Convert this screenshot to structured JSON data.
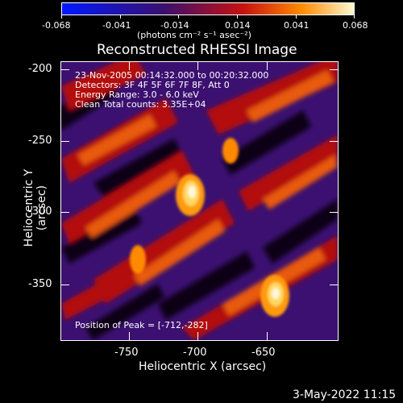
{
  "colorbar": {
    "tick_labels": [
      "-0.068",
      "-0.041",
      "-0.014",
      "0.014",
      "0.041",
      "0.068"
    ],
    "unit_label": "(photons cm⁻² s⁻¹ asec⁻²)",
    "colors": [
      "#0018ff",
      "#3a0f6e",
      "#c81010",
      "#ff8a00",
      "#fff8d0"
    ]
  },
  "title": "Reconstructed RHESSI Image",
  "annotations": {
    "time_range": "23-Nov-2005 00:14:32.000 to 00:20:32.000",
    "detectors": "Detectors: 3F 4F 5F 6F 7F 8F, Att 0",
    "energy_range": "Energy Range: 3.0 - 6.0 keV",
    "clean_counts": "Clean    Total counts: 3.35E+04",
    "peak_position": "Position of Peak = [-712,-282]"
  },
  "axes": {
    "y_label": "Heliocentric Y (arcsec)",
    "x_label": "Heliocentric X (arcsec)",
    "y_ticks": [
      "-200",
      "-250",
      "-300",
      "-350"
    ],
    "x_ticks": [
      "-750",
      "-700",
      "-650"
    ]
  },
  "footer": {
    "date": "3-May-2022 11:15"
  }
}
